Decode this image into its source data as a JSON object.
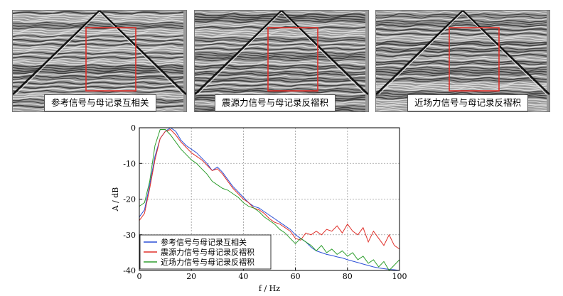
{
  "panels": [
    {
      "label": "参考信号与母记录互相关"
    },
    {
      "label": "震源力信号与母记录反褶积"
    },
    {
      "label": "近场力信号与母记录反褶积"
    }
  ],
  "colors": {
    "highlight_box": "#e0302a",
    "grid": "#9a9a9a"
  },
  "chart_data": {
    "type": "line",
    "xlabel": "f / Hz",
    "ylabel": "A / dB",
    "xlim": [
      0,
      100
    ],
    "ylim": [
      -40,
      0
    ],
    "xticks": [
      "0",
      "20",
      "40",
      "60",
      "80",
      "100"
    ],
    "yticks": [
      "0",
      "-10",
      "-20",
      "-30",
      "-40"
    ],
    "grid": "dashed",
    "legend_position": "bottom-left",
    "series": [
      {
        "name": "参考信号与母记录互相关",
        "color": "#2c4fd6",
        "x": [
          0,
          2,
          4,
          6,
          8,
          10,
          12,
          14,
          16,
          18,
          20,
          22,
          24,
          26,
          28,
          30,
          32,
          34,
          36,
          38,
          40,
          42,
          44,
          46,
          48,
          50,
          52,
          54,
          56,
          58,
          60,
          62,
          64,
          66,
          68,
          70,
          72,
          74,
          76,
          78,
          80,
          82,
          84,
          86,
          88,
          90,
          92,
          94,
          96,
          98,
          100
        ],
        "y": [
          -25,
          -23,
          -16,
          -8,
          -3,
          -1,
          0,
          -1,
          -3.5,
          -5,
          -6,
          -7,
          -8.5,
          -10,
          -12,
          -11,
          -12.5,
          -14.5,
          -16.5,
          -18,
          -19.5,
          -21,
          -22,
          -22.5,
          -23.5,
          -24.5,
          -25.5,
          -26.5,
          -27.5,
          -28.5,
          -30,
          -31,
          -32,
          -33.5,
          -34.5,
          -35,
          -35.5,
          -35.8,
          -36.2,
          -36.5,
          -37,
          -37.4,
          -37.8,
          -38.2,
          -38.6,
          -39,
          -39.3,
          -39.5,
          -39.7,
          -39.8,
          -40
        ]
      },
      {
        "name": "震源力信号与母记录反褶积",
        "color": "#e0302a",
        "x": [
          0,
          2,
          4,
          6,
          8,
          10,
          12,
          14,
          16,
          18,
          20,
          22,
          24,
          26,
          28,
          30,
          32,
          34,
          36,
          38,
          40,
          42,
          44,
          46,
          48,
          50,
          52,
          54,
          56,
          58,
          60,
          62,
          64,
          66,
          68,
          70,
          72,
          74,
          76,
          78,
          80,
          82,
          84,
          86,
          88,
          90,
          92,
          94,
          96,
          98,
          100
        ],
        "y": [
          -26,
          -24,
          -17,
          -9,
          -3,
          -1,
          -0.5,
          -2,
          -4,
          -5.5,
          -7,
          -8,
          -9,
          -10.5,
          -12,
          -11.5,
          -13,
          -15,
          -17,
          -18.5,
          -20,
          -21,
          -22.5,
          -23,
          -24,
          -25.5,
          -26.5,
          -27,
          -28,
          -29,
          -31,
          -31.5,
          -29.5,
          -30,
          -29,
          -30,
          -28.5,
          -29,
          -27.5,
          -29.5,
          -27,
          -29,
          -30,
          -28,
          -32,
          -29,
          -31,
          -33,
          -30,
          -33,
          -34
        ]
      },
      {
        "name": "近场力信号与母记录反褶积",
        "color": "#2e9e2e",
        "x": [
          0,
          2,
          4,
          6,
          8,
          10,
          12,
          14,
          16,
          18,
          20,
          22,
          24,
          26,
          28,
          30,
          32,
          34,
          36,
          38,
          40,
          42,
          44,
          46,
          48,
          50,
          52,
          54,
          56,
          58,
          60,
          62,
          64,
          66,
          68,
          70,
          72,
          74,
          76,
          78,
          80,
          82,
          84,
          86,
          88,
          90,
          92,
          94,
          96,
          98,
          100
        ],
        "y": [
          -22,
          -21,
          -15,
          -5,
          -0.5,
          -0.5,
          -2,
          -4,
          -6,
          -7.5,
          -9,
          -10,
          -11.5,
          -13,
          -15,
          -16,
          -17,
          -17.5,
          -18.5,
          -19.5,
          -21,
          -22,
          -22.5,
          -23.5,
          -25,
          -26,
          -27,
          -28.5,
          -29.5,
          -31,
          -32.5,
          -31,
          -32,
          -33,
          -34.5,
          -33,
          -35,
          -34,
          -35.5,
          -34.5,
          -36,
          -35,
          -37,
          -36,
          -38,
          -37,
          -39,
          -37.5,
          -40,
          -38.5,
          -37
        ]
      }
    ]
  }
}
